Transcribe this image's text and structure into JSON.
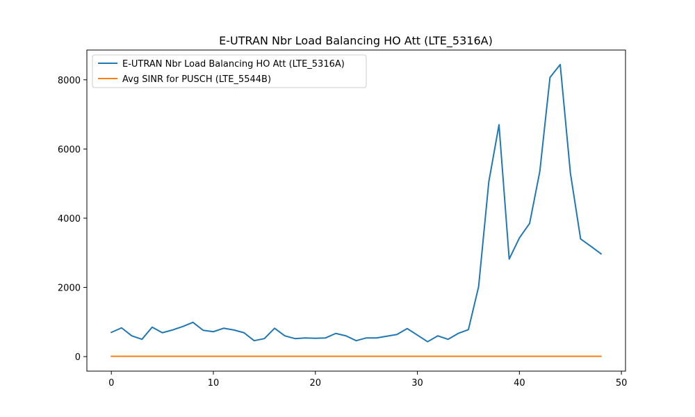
{
  "chart_data": {
    "type": "line",
    "title": "E-UTRAN Nbr Load Balancing HO Att (LTE_5316A)",
    "xlabel": "",
    "ylabel": "",
    "xlim": [
      -2.4,
      50.4
    ],
    "ylim": [
      -420,
      8860
    ],
    "xticks": [
      0,
      10,
      20,
      30,
      40,
      50
    ],
    "yticks": [
      0,
      2000,
      4000,
      6000,
      8000
    ],
    "grid": false,
    "legend_position": "upper-left",
    "series": [
      {
        "name": "E-UTRAN Nbr Load Balancing HO Att (LTE_5316A)",
        "color": "#1f77b4",
        "x": [
          0,
          1,
          2,
          3,
          4,
          5,
          6,
          7,
          8,
          9,
          10,
          11,
          12,
          13,
          14,
          15,
          16,
          17,
          18,
          19,
          20,
          21,
          22,
          23,
          24,
          25,
          26,
          27,
          28,
          29,
          30,
          31,
          32,
          33,
          34,
          35,
          36,
          37,
          38,
          39,
          40,
          41,
          42,
          43,
          44,
          45,
          46,
          47,
          48
        ],
        "values": [
          700,
          830,
          600,
          500,
          850,
          690,
          770,
          870,
          990,
          760,
          720,
          820,
          770,
          690,
          460,
          520,
          820,
          600,
          520,
          540,
          530,
          540,
          670,
          600,
          460,
          540,
          540,
          590,
          640,
          810,
          620,
          430,
          600,
          500,
          670,
          780,
          2020,
          5050,
          6700,
          2820,
          3430,
          3850,
          5350,
          8070,
          8440,
          5300,
          3400,
          3190,
          2970
        ]
      },
      {
        "name": "Avg SINR for PUSCH (LTE_5544B)",
        "color": "#ff7f0e",
        "x": [
          0,
          1,
          2,
          3,
          4,
          5,
          6,
          7,
          8,
          9,
          10,
          11,
          12,
          13,
          14,
          15,
          16,
          17,
          18,
          19,
          20,
          21,
          22,
          23,
          24,
          25,
          26,
          27,
          28,
          29,
          30,
          31,
          32,
          33,
          34,
          35,
          36,
          37,
          38,
          39,
          40,
          41,
          42,
          43,
          44,
          45,
          46,
          47,
          48
        ],
        "values": [
          10,
          10,
          10,
          10,
          10,
          10,
          10,
          10,
          10,
          10,
          10,
          10,
          10,
          10,
          10,
          10,
          10,
          10,
          10,
          10,
          10,
          10,
          10,
          10,
          10,
          10,
          10,
          10,
          10,
          10,
          10,
          10,
          10,
          10,
          10,
          10,
          10,
          10,
          10,
          10,
          10,
          10,
          10,
          10,
          10,
          10,
          10,
          10,
          10
        ]
      }
    ]
  }
}
